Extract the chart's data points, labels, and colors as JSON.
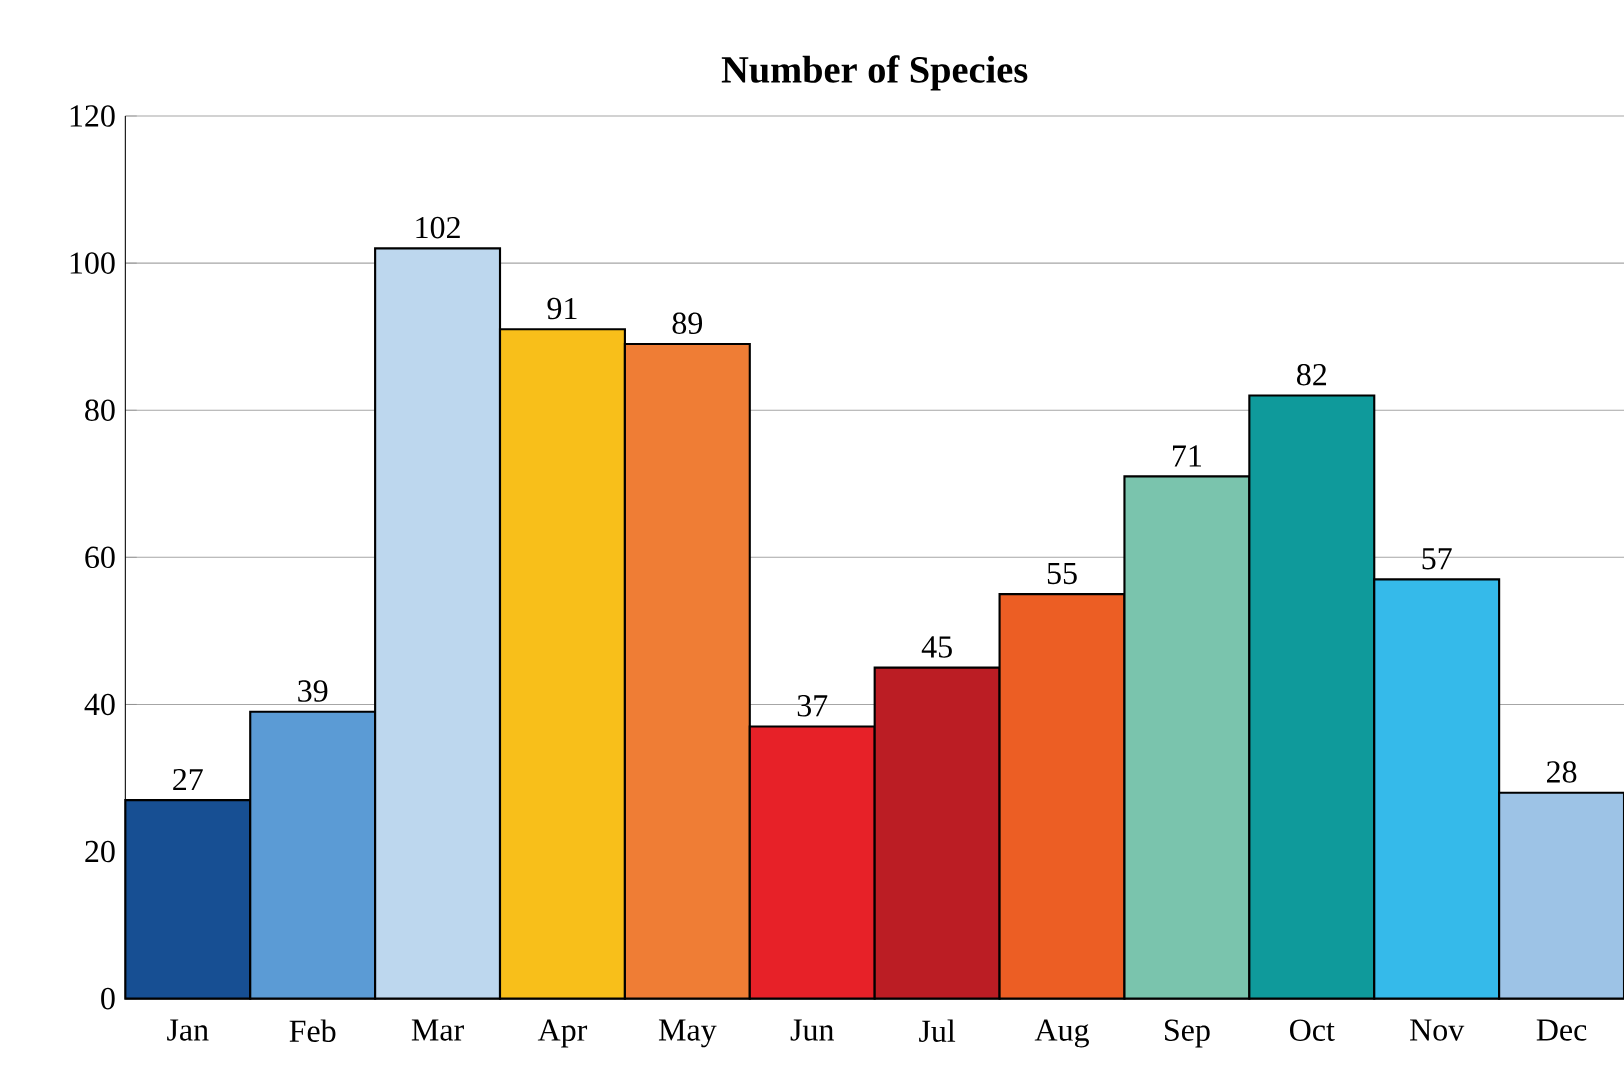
{
  "chart_data": {
    "type": "bar",
    "title": "Number of Species",
    "categories": [
      "Jan",
      "Feb",
      "Mar",
      "Apr",
      "May",
      "Jun",
      "Jul",
      "Aug",
      "Sep",
      "Oct",
      "Nov",
      "Dec"
    ],
    "values": [
      27,
      39,
      102,
      91,
      89,
      37,
      45,
      55,
      71,
      82,
      57,
      28
    ],
    "colors": [
      "#174f93",
      "#5b9bd5",
      "#bdd7ee",
      "#f8bf1a",
      "#ef7d35",
      "#e72128",
      "#bb1d24",
      "#ec5e24",
      "#7ac4ad",
      "#0f9a9b",
      "#35baea",
      "#9dc3e6"
    ],
    "ylim": [
      0,
      120
    ],
    "yticks": [
      0,
      20,
      40,
      60,
      80,
      100,
      120
    ],
    "grid": "y",
    "data_labels": true
  }
}
